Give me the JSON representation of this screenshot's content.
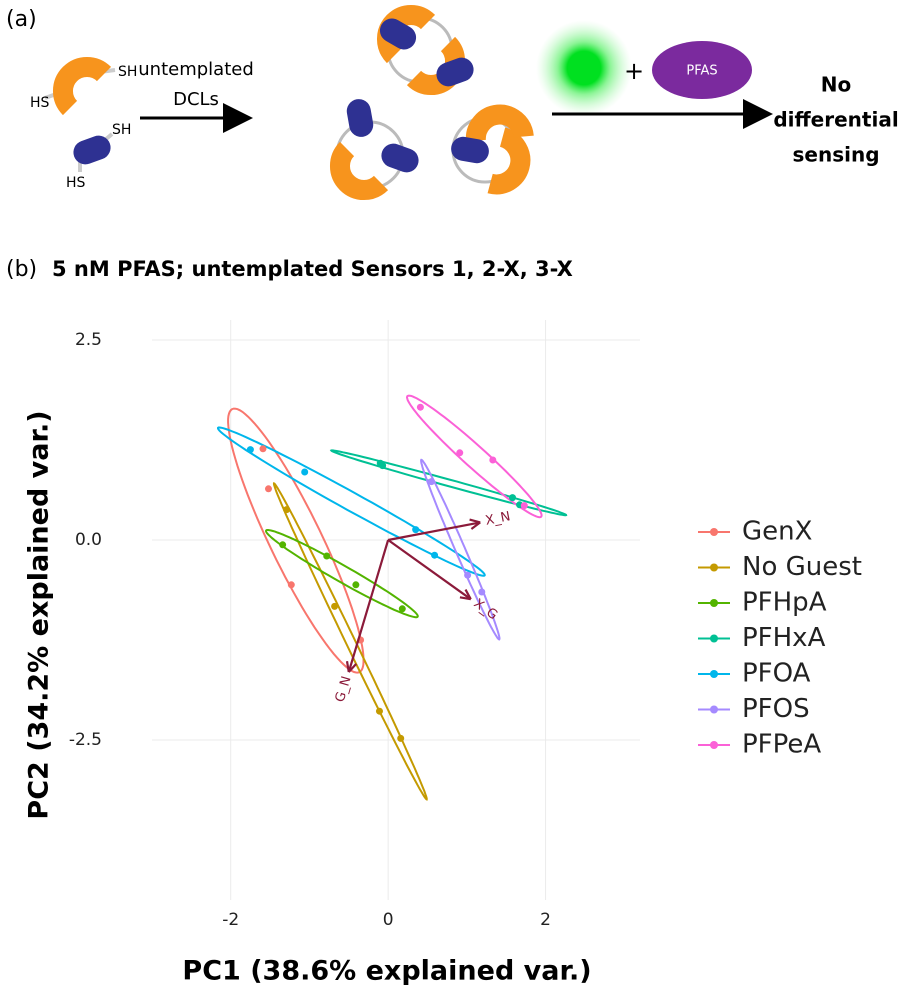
{
  "schematic": {
    "panel_label": "(a)",
    "thiol_labels": [
      "SH",
      "HS",
      "SH",
      "HS"
    ],
    "arrow_text": [
      "untemplated",
      "DCLs"
    ],
    "plus": "+",
    "guest": "PFAS",
    "result": [
      "No",
      "differential",
      "sensing"
    ]
  },
  "chart_data": {
    "type": "scatter",
    "panel_label": "(b)",
    "title": "5 nM PFAS; untemplated Sensors 1, 2-X, 3-X",
    "x_label": "PC1 (38.6% explained var.)",
    "y_label": "PC2 (34.2% explained var.)",
    "xlim": [
      -3.0,
      3.2
    ],
    "ylim": [
      -4.5,
      2.75
    ],
    "xticks": [
      -2,
      0,
      2
    ],
    "yticks": [
      -2.5,
      {
        "value": 0,
        "label": "0.0"
      },
      2.5
    ],
    "grid": true,
    "ellipses": true,
    "legend": "right",
    "series": [
      {
        "name": "GenX",
        "color": "#F8766D",
        "x": [
          -1.59,
          -1.52,
          -1.23,
          -0.35
        ],
        "values": [
          1.14,
          0.64,
          -0.56,
          -1.25
        ]
      },
      {
        "name": "No Guest",
        "color": "#C49A00",
        "x": [
          -1.29,
          -0.68,
          -0.11,
          0.16
        ],
        "values": [
          0.38,
          -0.83,
          -2.14,
          -2.48
        ]
      },
      {
        "name": "PFHpA",
        "color": "#53B400",
        "x": [
          -1.34,
          -0.78,
          -0.41,
          0.18
        ],
        "values": [
          -0.06,
          -0.2,
          -0.56,
          -0.86
        ]
      },
      {
        "name": "PFHxA",
        "color": "#00C094",
        "x": [
          -0.1,
          -0.07,
          1.58,
          1.67
        ],
        "values": [
          0.96,
          0.93,
          0.53,
          0.44
        ]
      },
      {
        "name": "PFOA",
        "color": "#00B6EB",
        "x": [
          -1.75,
          -1.06,
          0.35,
          0.59
        ],
        "values": [
          1.13,
          0.85,
          0.13,
          -0.19
        ]
      },
      {
        "name": "PFOS",
        "color": "#A58AFF",
        "x": [
          0.55,
          1.01,
          1.19
        ],
        "values": [
          0.73,
          -0.44,
          -0.65
        ]
      },
      {
        "name": "PFPeA",
        "color": "#FB61D7",
        "x": [
          0.41,
          0.91,
          1.33,
          1.73
        ],
        "values": [
          1.66,
          1.09,
          1.0,
          0.43
        ]
      }
    ],
    "arrows": {
      "color": "#8B1A3A",
      "names": [
        "X_N",
        "X_G",
        "G_N"
      ],
      "x": [
        1.17,
        1.05,
        -0.5
      ],
      "values": [
        0.22,
        -0.74,
        -1.65
      ]
    }
  }
}
